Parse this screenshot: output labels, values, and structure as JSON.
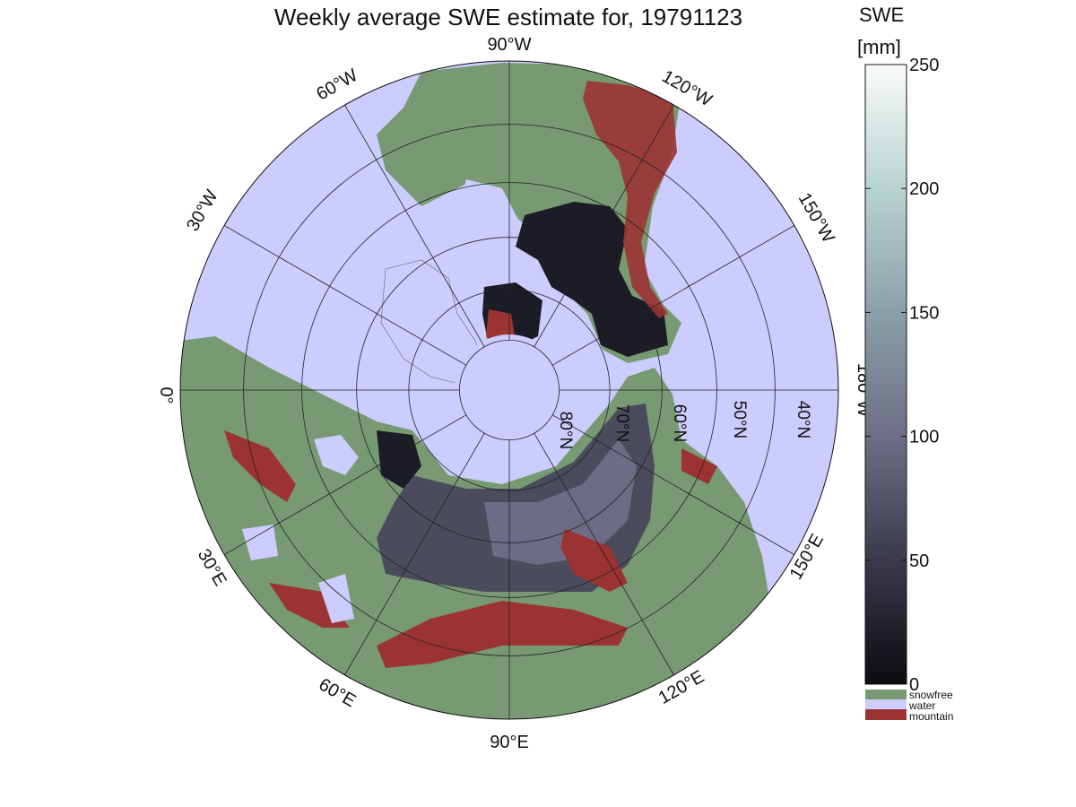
{
  "title": "Weekly average SWE estimate for, 19791123",
  "colorbar": {
    "label_line1": "SWE",
    "label_line2": "[mm]",
    "ticks": [
      "0",
      "50",
      "100",
      "150",
      "200",
      "250"
    ],
    "tick_values": [
      0,
      50,
      100,
      150,
      200,
      250
    ],
    "range": [
      0,
      250
    ],
    "colormap": [
      "#0b0b10",
      "#3a3a4c",
      "#6e6e86",
      "#8aa0a8",
      "#b8d4d0",
      "#fafbfb"
    ]
  },
  "legend": {
    "categories": [
      {
        "label": "snowfree",
        "color": "#779a72"
      },
      {
        "label": "water",
        "color": "#ccccff"
      },
      {
        "label": "mountain",
        "color": "#9b3333"
      }
    ]
  },
  "map": {
    "projection": "north polar stereographic",
    "longitude_labels": [
      {
        "text": "90°W",
        "lon": -90
      },
      {
        "text": "120°W",
        "lon": -120
      },
      {
        "text": "150°W",
        "lon": -150
      },
      {
        "text": "180°W",
        "lon": 180
      },
      {
        "text": "150°E",
        "lon": 150
      },
      {
        "text": "120°E",
        "lon": 120
      },
      {
        "text": "90°E",
        "lon": 90
      },
      {
        "text": "60°E",
        "lon": 60
      },
      {
        "text": "30°E",
        "lon": 30
      },
      {
        "text": "0°",
        "lon": 0
      },
      {
        "text": "30°W",
        "lon": -30
      },
      {
        "text": "60°W",
        "lon": -60
      }
    ],
    "latitude_labels": [
      "80°N",
      "70°N",
      "60°N",
      "50°N",
      "40°N"
    ],
    "latitudes": [
      80,
      70,
      60,
      50,
      40
    ]
  }
}
